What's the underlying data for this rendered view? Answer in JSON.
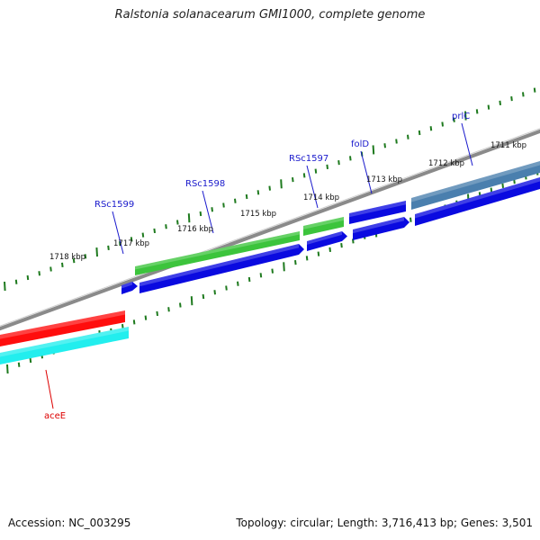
{
  "title": "Ralstonia solanacearum GMI1000, complete genome",
  "footer": {
    "accession": "Accession: NC_003295",
    "summary": "Topology: circular; Length: 3,716,413 bp; Genes: 3,501"
  },
  "ruler": {
    "unit": "kbp",
    "labels": [
      "1711 kbp",
      "1712 kbp",
      "1713 kbp",
      "1714 kbp",
      "1715 kbp",
      "1716 kbp",
      "1717 kbp",
      "1718 kbp"
    ],
    "tick_color": "#1e7a1e"
  },
  "colors": {
    "forward_gene": "#0a0ae0",
    "forward_cds": "#3cc43c",
    "highlight_cds": "#4a7fae",
    "reverse_gene": "#ff0d0d",
    "reverse_cds": "#22eeee",
    "backbone": "#8a8a8a",
    "label_forward": "#1a1acc",
    "label_reverse": "#dd0000"
  },
  "genes": [
    {
      "name": "prlC",
      "strand": "forward"
    },
    {
      "name": "folD",
      "strand": "forward"
    },
    {
      "name": "RSc1597",
      "strand": "forward"
    },
    {
      "name": "RSc1598",
      "strand": "forward"
    },
    {
      "name": "RSc1599",
      "strand": "forward"
    },
    {
      "name": "aceE",
      "strand": "reverse"
    }
  ]
}
